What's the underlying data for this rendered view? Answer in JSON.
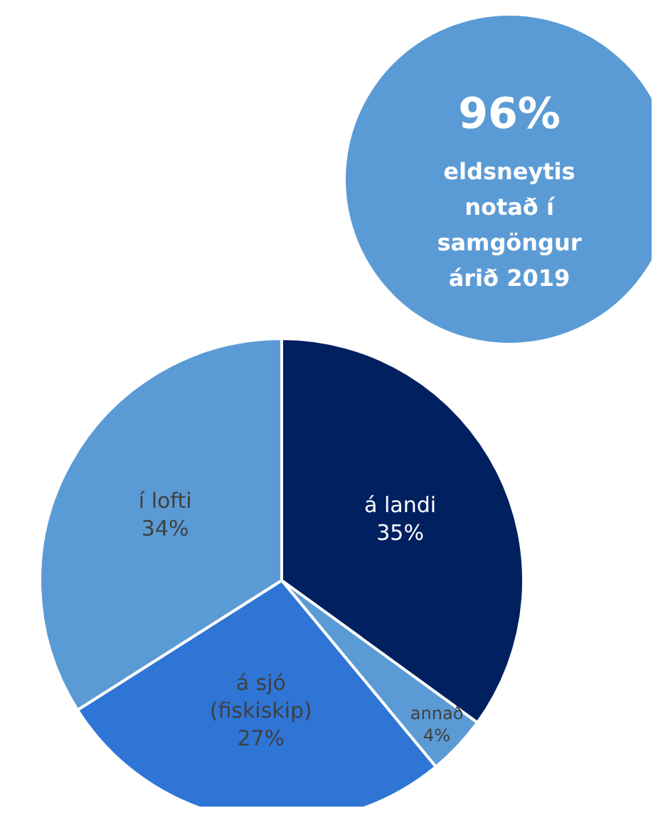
{
  "chart_data": {
    "type": "pie",
    "categories": [
      "á landi",
      "annað",
      "á sjó (fiskiskip)",
      "í lofti"
    ],
    "values": [
      35,
      4,
      27,
      34
    ],
    "value_labels": [
      "35%",
      "4%",
      "27%",
      "34%"
    ],
    "colors": [
      "#002060",
      "#5b9bd5",
      "#2e75d6",
      "#5b9bd5"
    ],
    "annotations": [
      "96%",
      "eldsneytis",
      "notað í",
      "samgöngur",
      "árið 2019"
    ]
  }
}
